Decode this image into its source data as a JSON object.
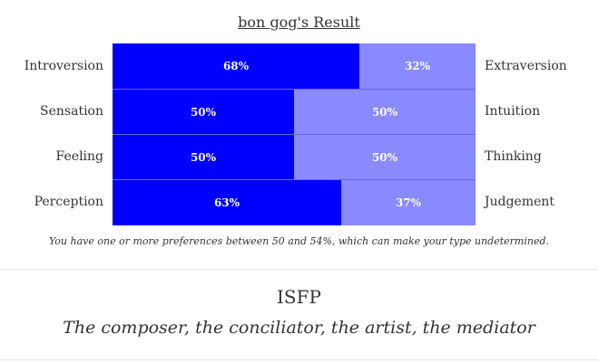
{
  "result_title": "bon gog's Result",
  "preferences": [
    {
      "left_label": "Introversion",
      "left_percent": "68%",
      "left_value": 68,
      "right_label": "Extraversion",
      "right_percent": "32%",
      "right_value": 32
    },
    {
      "left_label": "Sensation",
      "left_percent": "50%",
      "left_value": 50,
      "right_label": "Intuition",
      "right_percent": "50%",
      "right_value": 50
    },
    {
      "left_label": "Feeling",
      "left_percent": "50%",
      "left_value": 50,
      "right_label": "Thinking",
      "right_percent": "50%",
      "right_value": 50
    },
    {
      "left_label": "Perception",
      "left_percent": "63%",
      "left_value": 63,
      "right_label": "Judgement",
      "right_percent": "37%",
      "right_value": 37
    }
  ],
  "note": "You have one or more preferences between 50 and 54%, which can make your type undetermined.",
  "type_code": "ISFP",
  "type_description": "The composer, the conciliator, the artist, the mediator",
  "colors": {
    "dominant": "#0000ff",
    "secondary": "#8a8aff"
  }
}
